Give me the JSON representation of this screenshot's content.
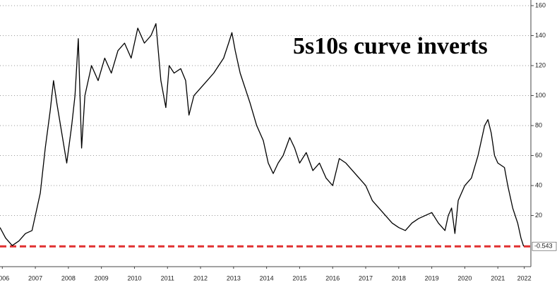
{
  "chart_data": {
    "type": "line",
    "annotation": "5s10s curve inverts",
    "x": [
      2006.43,
      2006.6,
      2006.8,
      2007.0,
      2007.2,
      2007.4,
      2007.5,
      2007.65,
      2007.8,
      2007.95,
      2008.05,
      2008.15,
      2008.3,
      2008.45,
      2008.6,
      2008.7,
      2008.8,
      2008.9,
      2009.0,
      2009.2,
      2009.4,
      2009.6,
      2009.8,
      2010.0,
      2010.2,
      2010.4,
      2010.6,
      2010.8,
      2011.0,
      2011.15,
      2011.3,
      2011.45,
      2011.55,
      2011.7,
      2011.9,
      2012.05,
      2012.15,
      2012.3,
      2012.5,
      2012.7,
      2012.9,
      2013.05,
      2013.2,
      2013.35,
      2013.45,
      2013.55,
      2013.7,
      2013.85,
      2014.0,
      2014.2,
      2014.4,
      2014.55,
      2014.7,
      2014.85,
      2015.0,
      2015.2,
      2015.35,
      2015.5,
      2015.7,
      2015.9,
      2016.1,
      2016.3,
      2016.5,
      2016.7,
      2016.9,
      2017.1,
      2017.3,
      2017.5,
      2017.7,
      2017.9,
      2018.1,
      2018.3,
      2018.5,
      2018.7,
      2018.9,
      2019.1,
      2019.3,
      2019.5,
      2019.7,
      2019.9,
      2020.0,
      2020.1,
      2020.2,
      2020.3,
      2020.5,
      2020.7,
      2020.9,
      2021.0,
      2021.1,
      2021.2,
      2021.3,
      2021.4,
      2021.5,
      2021.7,
      2021.8,
      2021.95,
      2022.1,
      2022.2,
      2022.28
    ],
    "series": [
      {
        "color": "#000000",
        "values": [
          12,
          5,
          0,
          3,
          8,
          10,
          20,
          35,
          65,
          90,
          110,
          95,
          75,
          55,
          80,
          100,
          138,
          65,
          100,
          120,
          110,
          125,
          115,
          130,
          135,
          125,
          145,
          135,
          140,
          148,
          110,
          92,
          120,
          115,
          118,
          110,
          87,
          100,
          105,
          110,
          115,
          120,
          125,
          135,
          142,
          130,
          115,
          105,
          95,
          80,
          70,
          55,
          48,
          55,
          60,
          72,
          65,
          55,
          62,
          50,
          55,
          45,
          40,
          58,
          55,
          50,
          45,
          40,
          30,
          25,
          20,
          15,
          12,
          10,
          15,
          18,
          20,
          22,
          15,
          10,
          20,
          25,
          8,
          30,
          40,
          45,
          60,
          70,
          80,
          84,
          75,
          60,
          55,
          52,
          40,
          25,
          15,
          5,
          -0.543
        ]
      }
    ],
    "reference_line": {
      "value": -0.543,
      "color": "#e03030"
    },
    "xlim": [
      2006.43,
      2022.5
    ],
    "xticks": [
      {
        "value": 2006.5,
        "label": "2006"
      },
      {
        "value": 2007.5,
        "label": "2007"
      },
      {
        "value": 2008.5,
        "label": "2008"
      },
      {
        "value": 2009.5,
        "label": "2009"
      },
      {
        "value": 2010.5,
        "label": "2010"
      },
      {
        "value": 2011.5,
        "label": "2011"
      },
      {
        "value": 2012.5,
        "label": "2012"
      },
      {
        "value": 2013.5,
        "label": "2013"
      },
      {
        "value": 2014.5,
        "label": "2014"
      },
      {
        "value": 2015.5,
        "label": "2015"
      },
      {
        "value": 2016.5,
        "label": "2016"
      },
      {
        "value": 2017.5,
        "label": "2017"
      },
      {
        "value": 2018.5,
        "label": "2018"
      },
      {
        "value": 2019.5,
        "label": "2019"
      },
      {
        "value": 2020.5,
        "label": "2020"
      },
      {
        "value": 2021.5,
        "label": "2021"
      },
      {
        "value": 2022.3,
        "label": "2022"
      }
    ],
    "ylim": [
      -14.1,
      160
    ],
    "yticks": [
      20,
      40,
      60,
      80,
      100,
      120,
      140,
      160
    ],
    "grid": true
  }
}
